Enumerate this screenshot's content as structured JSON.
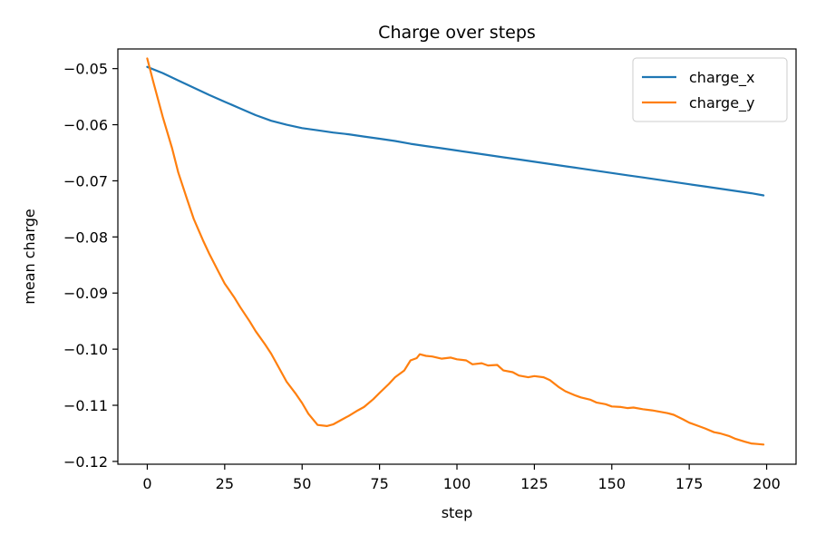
{
  "chart_data": {
    "type": "line",
    "title": "Charge over steps",
    "xlabel": "step",
    "ylabel": "mean charge",
    "xlim": [
      -9.5,
      209.5
    ],
    "ylim": [
      -0.1205,
      -0.0465
    ],
    "xticks": [
      0,
      25,
      50,
      75,
      100,
      125,
      150,
      175,
      200
    ],
    "xtick_labels": [
      "0",
      "25",
      "50",
      "75",
      "100",
      "125",
      "150",
      "175",
      "200"
    ],
    "yticks": [
      -0.05,
      -0.06,
      -0.07,
      -0.08,
      -0.09,
      -0.1,
      -0.11,
      -0.12
    ],
    "ytick_labels": [
      "−0.05",
      "−0.06",
      "−0.07",
      "−0.08",
      "−0.09",
      "−0.10",
      "−0.11",
      "−0.12"
    ],
    "grid": false,
    "legend_position": "top-right",
    "series": [
      {
        "name": "charge_x",
        "color": "#1f77b4",
        "x": [
          0,
          5,
          10,
          15,
          20,
          25,
          30,
          35,
          40,
          45,
          50,
          55,
          60,
          65,
          70,
          75,
          80,
          85,
          90,
          95,
          100,
          105,
          110,
          115,
          120,
          125,
          130,
          135,
          140,
          145,
          150,
          155,
          160,
          165,
          170,
          175,
          180,
          185,
          190,
          195,
          199
        ],
        "y": [
          -0.0497,
          -0.0508,
          -0.0521,
          -0.0534,
          -0.0547,
          -0.0559,
          -0.0571,
          -0.0583,
          -0.0593,
          -0.06,
          -0.0606,
          -0.061,
          -0.0614,
          -0.0617,
          -0.0621,
          -0.0625,
          -0.0629,
          -0.0634,
          -0.0638,
          -0.0642,
          -0.0646,
          -0.065,
          -0.0654,
          -0.0658,
          -0.0662,
          -0.0666,
          -0.067,
          -0.0674,
          -0.0678,
          -0.0682,
          -0.0686,
          -0.069,
          -0.0694,
          -0.0698,
          -0.0702,
          -0.0706,
          -0.071,
          -0.0714,
          -0.0718,
          -0.0722,
          -0.0726
        ]
      },
      {
        "name": "charge_y",
        "color": "#ff7f0e",
        "x": [
          0,
          2,
          5,
          8,
          10,
          13,
          15,
          18,
          20,
          23,
          25,
          28,
          30,
          33,
          35,
          38,
          40,
          43,
          45,
          48,
          50,
          52,
          55,
          58,
          60,
          63,
          65,
          68,
          70,
          73,
          75,
          78,
          80,
          83,
          85,
          87,
          88,
          90,
          92,
          95,
          98,
          100,
          103,
          105,
          108,
          110,
          113,
          115,
          118,
          120,
          123,
          125,
          128,
          130,
          133,
          135,
          138,
          140,
          143,
          145,
          148,
          150,
          153,
          155,
          157,
          160,
          163,
          165,
          168,
          170,
          173,
          175,
          178,
          180,
          183,
          185,
          188,
          190,
          193,
          195,
          197,
          199
        ],
        "y": [
          -0.0482,
          -0.0525,
          -0.0586,
          -0.0642,
          -0.0685,
          -0.0735,
          -0.0768,
          -0.0806,
          -0.083,
          -0.0862,
          -0.0883,
          -0.0907,
          -0.0925,
          -0.095,
          -0.0968,
          -0.0991,
          -0.1008,
          -0.1038,
          -0.1058,
          -0.108,
          -0.1096,
          -0.1115,
          -0.1135,
          -0.1137,
          -0.1134,
          -0.1125,
          -0.1119,
          -0.1109,
          -0.1103,
          -0.1089,
          -0.1078,
          -0.1062,
          -0.105,
          -0.1038,
          -0.102,
          -0.1016,
          -0.1009,
          -0.1012,
          -0.1013,
          -0.1017,
          -0.1015,
          -0.1018,
          -0.102,
          -0.1027,
          -0.1025,
          -0.1029,
          -0.1028,
          -0.1038,
          -0.1041,
          -0.1047,
          -0.105,
          -0.1048,
          -0.105,
          -0.1055,
          -0.1068,
          -0.1075,
          -0.1082,
          -0.1086,
          -0.109,
          -0.1095,
          -0.1098,
          -0.1102,
          -0.1103,
          -0.1105,
          -0.1104,
          -0.1107,
          -0.1109,
          -0.1111,
          -0.1114,
          -0.1117,
          -0.1125,
          -0.1131,
          -0.1137,
          -0.1141,
          -0.1148,
          -0.115,
          -0.1155,
          -0.116,
          -0.1165,
          -0.1168,
          -0.1169,
          -0.117
        ]
      }
    ]
  }
}
